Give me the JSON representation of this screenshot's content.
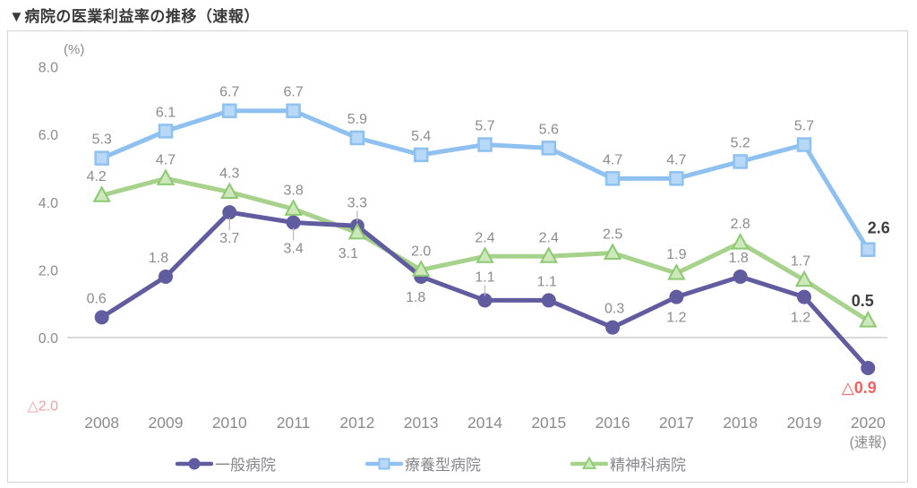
{
  "title": "▼病院の医業利益率の推移（速報）",
  "chart_data": {
    "type": "line",
    "title": "病院の医業利益率の推移（速報）",
    "unit_label": "(%)",
    "categories": [
      "2008",
      "2009",
      "2010",
      "2011",
      "2012",
      "2013",
      "2014",
      "2015",
      "2016",
      "2017",
      "2018",
      "2019",
      "2020"
    ],
    "last_category_note": "(速報)",
    "y_axis": {
      "ticks": [
        "8.0",
        "6.0",
        "4.0",
        "2.0",
        "0.0",
        "△2.0"
      ],
      "tick_values": [
        8,
        6,
        4,
        2,
        0,
        -2
      ],
      "min": -2,
      "max": 8,
      "tick_color": "#8c8c8c",
      "negative_tick_color": "#f59e9e"
    },
    "grid": "zero-line-only",
    "zero_line_color": "#d9d9d9",
    "legend_position": "bottom",
    "label_colors": {
      "g": "#8c8c8c",
      "k": "#3d3d44",
      "r": "#f95d5d"
    },
    "leader_color": "#bdbdbd",
    "series": [
      {
        "name": "療養型病院",
        "marker": "square",
        "color": "#8ec1ef",
        "marker_fill": "#b7d8f7",
        "values": [
          5.3,
          6.1,
          6.7,
          6.7,
          5.9,
          5.4,
          5.7,
          5.6,
          4.7,
          4.7,
          5.2,
          5.7,
          2.6
        ],
        "labels": [
          "5.3",
          "6.1",
          "6.7",
          "6.7",
          "5.9",
          "5.4",
          "5.7",
          "5.6",
          "4.7",
          "4.7",
          "5.2",
          "5.7",
          "2.6"
        ],
        "label_pos": [
          "a",
          "a",
          "a",
          "a",
          "a",
          "a",
          "a",
          "a",
          "a",
          "a",
          "a",
          "a",
          "ar"
        ],
        "label_style": [
          "g",
          "g",
          "g",
          "g",
          "g",
          "g",
          "g",
          "g",
          "g",
          "g",
          "g",
          "g",
          "k"
        ],
        "label_dx": [
          0,
          0,
          0,
          0,
          0,
          0,
          0,
          0,
          0,
          0,
          0,
          0,
          12
        ]
      },
      {
        "name": "精神科病院",
        "marker": "triangle",
        "color": "#a6d28b",
        "marker_fill": "#cfe8bb",
        "values": [
          4.2,
          4.7,
          4.3,
          3.8,
          3.1,
          2.0,
          2.4,
          2.4,
          2.5,
          1.9,
          2.8,
          1.7,
          0.5
        ],
        "labels": [
          "4.2",
          "4.7",
          "4.3",
          "3.8",
          "3.1",
          "2.0",
          "2.4",
          "2.4",
          "2.5",
          "1.9",
          "2.8",
          "1.7",
          "0.5"
        ],
        "label_pos": [
          "a",
          "a",
          "a",
          "a",
          "b",
          "a",
          "a",
          "a",
          "a",
          "a",
          "a",
          "a",
          "a"
        ],
        "label_style": [
          "g",
          "g",
          "g",
          "g",
          "g",
          "g",
          "g",
          "g",
          "g",
          "g",
          "g",
          "g",
          "k"
        ],
        "label_dx": [
          -6,
          0,
          0,
          0,
          -10,
          0,
          0,
          0,
          0,
          0,
          0,
          -4,
          -6
        ]
      },
      {
        "name": "一般病院",
        "marker": "circle",
        "color": "#615c9f",
        "marker_fill": "#615c9f",
        "values": [
          0.6,
          1.8,
          3.7,
          3.4,
          3.3,
          1.8,
          1.1,
          1.1,
          0.3,
          1.2,
          1.8,
          1.2,
          -0.9
        ],
        "labels": [
          "0.6",
          "1.8",
          "3.7",
          "3.4",
          "3.3",
          "1.8",
          "1.1",
          "1.1",
          "0.3",
          "1.2",
          "1.8",
          "1.2",
          "△0.9"
        ],
        "label_pos": [
          "a",
          "a",
          "bl",
          "bl",
          "al",
          "b",
          "al",
          "a",
          "a",
          "b",
          "a",
          "b",
          "b"
        ],
        "label_style": [
          "g",
          "g",
          "g",
          "g",
          "g",
          "g",
          "g",
          "g",
          "g",
          "g",
          "g",
          "g",
          "r"
        ],
        "label_dx": [
          -6,
          -8,
          0,
          0,
          0,
          -6,
          0,
          -2,
          2,
          0,
          -2,
          -4,
          -10
        ]
      }
    ]
  },
  "legend": {
    "items": [
      {
        "label": "一般病院"
      },
      {
        "label": "療養型病院"
      },
      {
        "label": "精神科病院"
      }
    ]
  }
}
